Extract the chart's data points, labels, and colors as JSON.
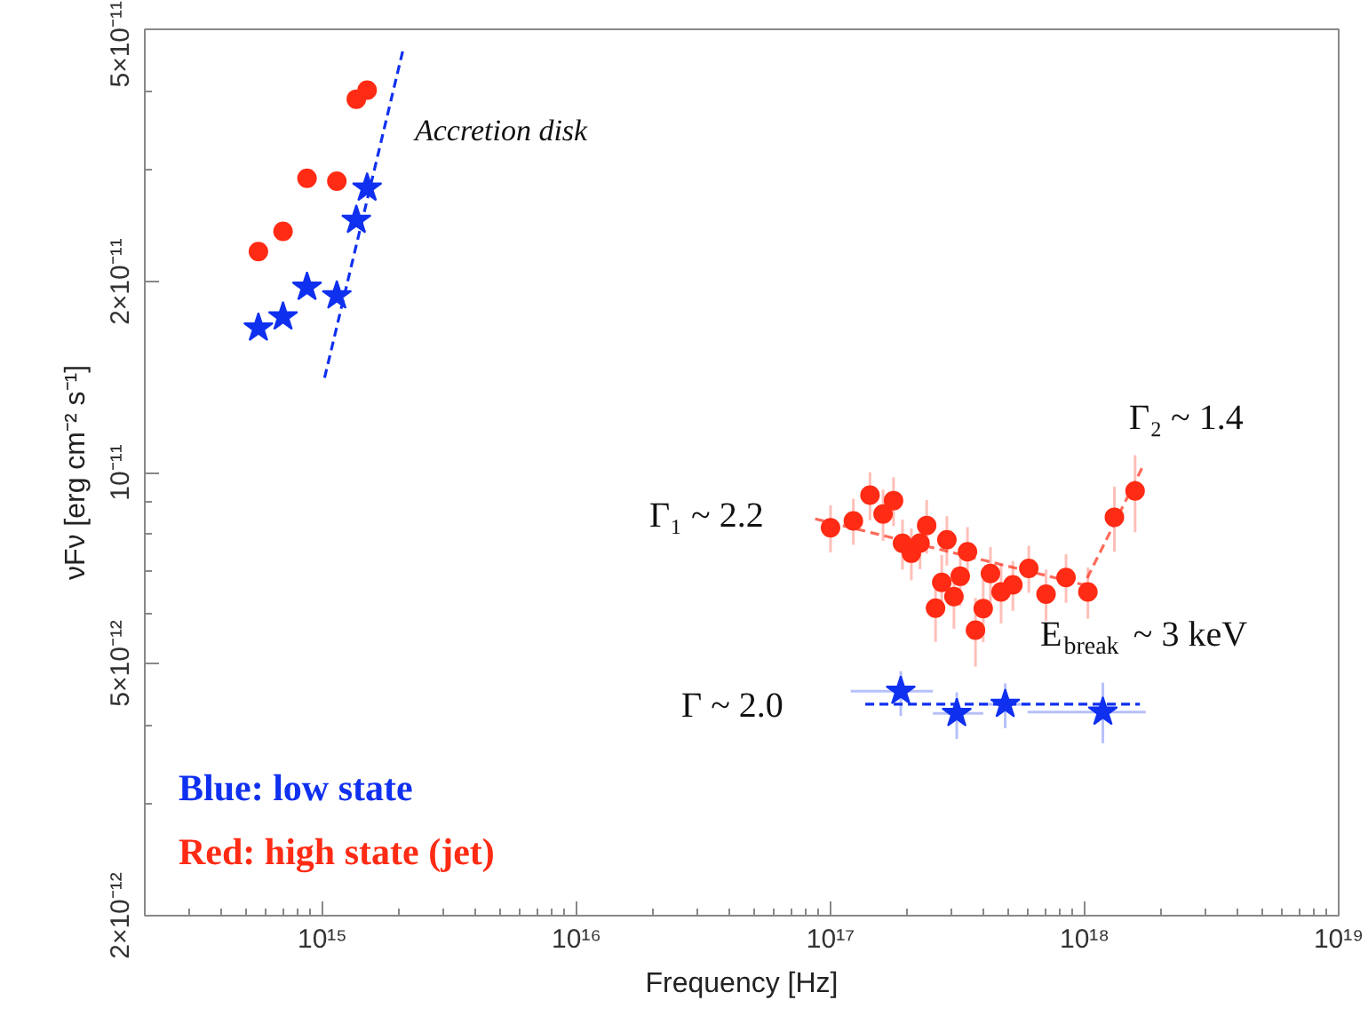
{
  "chart_data": {
    "type": "scatter",
    "xlabel": "Frequency [Hz]",
    "ylabel": "νFν [erg cm⁻² s⁻¹]",
    "log": "xy",
    "grid": false,
    "xlim": [
      200000000000000.0,
      1e+19
    ],
    "ylim": [
      2e-12,
      5e-11
    ],
    "xticks": [
      {
        "value": 1000000000000000.0,
        "label": "10¹⁵"
      },
      {
        "value": 1e+16,
        "label": "10¹⁶"
      },
      {
        "value": 1e+17,
        "label": "10¹⁷"
      },
      {
        "value": 1e+18,
        "label": "10¹⁸"
      },
      {
        "value": 1e+19,
        "label": "10¹⁹"
      }
    ],
    "yticks": [
      {
        "value": 2e-12,
        "label": "2×10⁻¹²"
      },
      {
        "value": 5e-12,
        "label": "5×10⁻¹²"
      },
      {
        "value": 1e-11,
        "label": "10⁻¹¹"
      },
      {
        "value": 2e-11,
        "label": "2×10⁻¹¹"
      },
      {
        "value": 5e-11,
        "label": "5×10⁻¹¹"
      }
    ],
    "series": [
      {
        "marker": "star",
        "color": "#1030f0",
        "x": [
          560000000000000.0,
          700000000000000.0,
          870000000000000.0,
          1140000000000000.0,
          1360000000000000.0,
          1500000000000000.0
        ],
        "values": [
          1.69e-11,
          1.76e-11,
          1.96e-11,
          1.9e-11,
          2.5e-11,
          2.81e-11
        ]
      },
      {
        "marker": "circle",
        "color": "#ff2b14",
        "x": [
          560000000000000.0,
          700000000000000.0,
          870000000000000.0,
          1140000000000000.0,
          1360000000000000.0,
          1500000000000000.0
        ],
        "values": [
          2.23e-11,
          2.4e-11,
          2.91e-11,
          2.88e-11,
          3.88e-11,
          4.01e-11
        ]
      },
      {
        "type": "line",
        "line_style": "dashed",
        "marker": "none",
        "color": "#1030f0",
        "x": [
          1020000000000000.0,
          2090000000000000.0
        ],
        "values": [
          1.41e-11,
          4.69e-11
        ]
      },
      {
        "type": "line",
        "line_style": "dashed",
        "marker": "none",
        "color": "#ff6a5a",
        "x": [
          8.7e+16,
          9.93e+17,
          1.69e+18
        ],
        "values": [
          8.45e-12,
          6.65e-12,
          1.02e-11
        ]
      },
      {
        "marker": "circle",
        "color": "#ff2b14",
        "x": [
          1e+17,
          1.23e+17,
          1.43e+17,
          1.61e+17,
          1.77e+17,
          1.92e+17,
          2.08e+17,
          2.25e+17,
          2.39e+17,
          2.59e+17,
          2.74e+17,
          2.87e+17,
          3.06e+17,
          3.24e+17,
          3.46e+17,
          3.72e+17,
          3.99e+17,
          4.26e+17,
          4.69e+17,
          5.22e+17,
          6.03e+17,
          7.05e+17,
          8.45e+17,
          1.03e+18,
          1.31e+18,
          1.58e+18
        ],
        "values": [
          8.18e-12,
          8.39e-12,
          9.21e-12,
          8.6e-12,
          9.03e-12,
          7.73e-12,
          7.46e-12,
          7.74e-12,
          8.25e-12,
          6.11e-12,
          6.71e-12,
          7.83e-12,
          6.37e-12,
          6.86e-12,
          7.5e-12,
          5.64e-12,
          6.1e-12,
          6.93e-12,
          6.48e-12,
          6.65e-12,
          7.06e-12,
          6.43e-12,
          6.83e-12,
          6.48e-12,
          8.5e-12,
          9.35e-12
        ],
        "errors": [
          7e-13,
          7e-13,
          8e-13,
          8e-13,
          8e-13,
          7e-13,
          7e-13,
          7e-13,
          8e-13,
          7e-13,
          7e-13,
          7e-13,
          7e-13,
          7e-13,
          7e-13,
          7e-13,
          7e-13,
          7e-13,
          7e-13,
          6e-13,
          6e-13,
          6e-13,
          6e-13,
          6e-13,
          1e-12,
          1.3e-12
        ]
      },
      {
        "marker": "star",
        "color": "#1030f0",
        "x": [
          1.89e+17,
          3.14e+17,
          4.87e+17,
          1.18e+18
        ],
        "values": [
          4.52e-12,
          4.17e-12,
          4.31e-12,
          4.19e-12
        ],
        "errors": [
          [
            4.13e-12,
            4.86e-12
          ],
          [
            3.8e-12,
            4.5e-12
          ],
          [
            3.95e-12,
            4.65e-12
          ],
          [
            3.74e-12,
            4.66e-12
          ]
        ],
        "xerrors": [
          [
            1.2e+17,
            2.53e+17
          ],
          [
            2.53e+17,
            3.99e+17
          ],
          [
            3.99e+17,
            5.96e+17
          ],
          [
            5.96e+17,
            1.74e+18
          ]
        ]
      },
      {
        "type": "line",
        "line_style": "dashed",
        "marker": "none",
        "color": "#1030f0",
        "x": [
          1.37e+17,
          1.65e+18
        ],
        "values": [
          4.31e-12,
          4.31e-12
        ]
      }
    ],
    "annotations": [
      "Accretion disk",
      "Γ₁ ~ 2.2",
      "Γ₂ ~ 1.4",
      "E$_{break}$ ~ 3 keV",
      "Γ ~ 2.0",
      "Blue: low state",
      "Red: high state (jet)"
    ]
  }
}
